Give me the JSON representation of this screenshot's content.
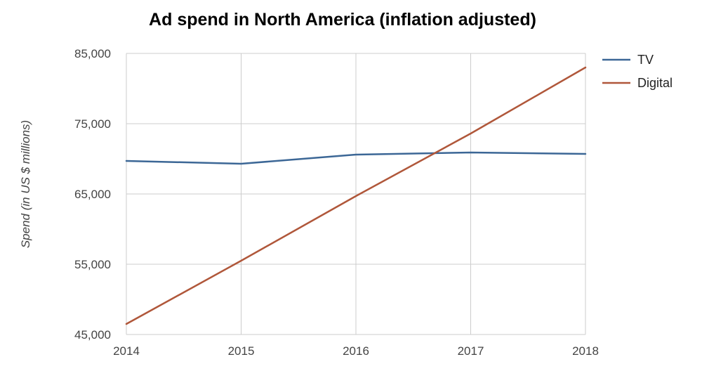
{
  "chart_data": {
    "type": "line",
    "title": "Ad spend in North America (inflation adjusted)",
    "xlabel": "",
    "ylabel": "Spend (in US $ millions)",
    "x": [
      2014,
      2015,
      2016,
      2017,
      2018
    ],
    "x_tick_labels": [
      "2014",
      "2015",
      "2016",
      "2017",
      "2018"
    ],
    "y_tick_labels": [
      "45,000",
      "55,000",
      "65,000",
      "75,000",
      "85,000"
    ],
    "y_ticks": [
      45000,
      55000,
      65000,
      75000,
      85000
    ],
    "ylim": [
      45000,
      85000
    ],
    "xlim": [
      2014,
      2018
    ],
    "grid": true,
    "legend_position": "right",
    "series": [
      {
        "name": "TV",
        "color": "#3c6796",
        "values": [
          69700,
          69300,
          70600,
          70900,
          70700
        ]
      },
      {
        "name": "Digital",
        "color": "#b0573a",
        "values": [
          46500,
          55500,
          64700,
          73600,
          83000
        ]
      }
    ]
  }
}
